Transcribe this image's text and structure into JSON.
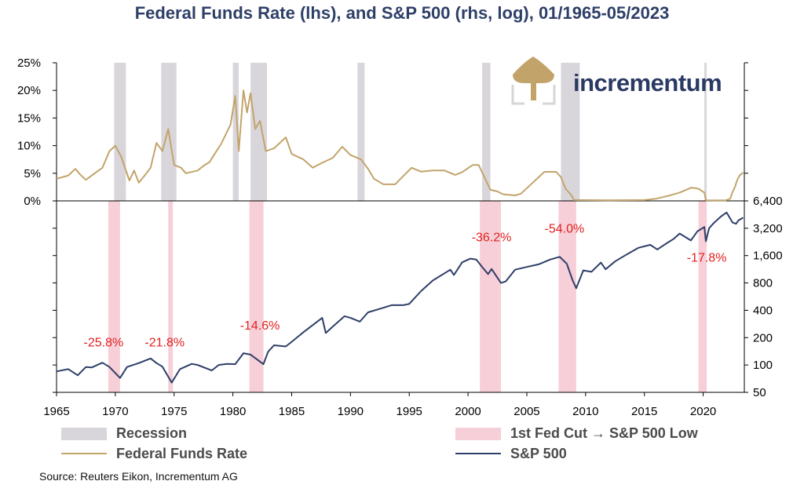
{
  "title": "Federal Funds Rate (lhs), and S&P 500 (rhs, log), 01/1965-05/2023",
  "source": "Source: Reuters Eikon, Incrementum AG",
  "logo": {
    "text": "incrementum",
    "icon": "tree-logo-icon",
    "color": "#c2a46b"
  },
  "colors": {
    "ffr": "#c2a46b",
    "spx": "#2e3f68",
    "recession": "#d9d6db",
    "fedcut": "#f7cfd8",
    "annotation": "#e0211f"
  },
  "legend": [
    {
      "label": "Recession",
      "kind": "bar",
      "color": "#d9d6db"
    },
    {
      "label": "1st Fed Cut → S&P 500 Low",
      "kind": "bar",
      "color": "#f7cfd8"
    },
    {
      "label": "Federal Funds Rate",
      "kind": "line",
      "color": "#c2a46b"
    },
    {
      "label": "S&P 500",
      "kind": "line",
      "color": "#2e3f68"
    }
  ],
  "chart_data": {
    "type": "line",
    "x_range": [
      1965,
      2023.5
    ],
    "x_ticks": [
      "1965",
      "1970",
      "1975",
      "1980",
      "1985",
      "1990",
      "1995",
      "2000",
      "2005",
      "2010",
      "2015",
      "2020"
    ],
    "ffr_axis": {
      "ticks": [
        "0%",
        "5%",
        "10%",
        "15%",
        "20%",
        "25%"
      ],
      "ylim": [
        0,
        25
      ]
    },
    "spx_axis": {
      "scale": "log",
      "ticks": [
        "50",
        "100",
        "200",
        "400",
        "800",
        "1,600",
        "3,200",
        "6,400"
      ],
      "ylim": [
        50,
        6400
      ]
    },
    "recessions": [
      [
        1969.9,
        1970.9
      ],
      [
        1973.9,
        1975.2
      ],
      [
        1980.0,
        1980.5
      ],
      [
        1981.5,
        1982.9
      ],
      [
        1990.6,
        1991.2
      ],
      [
        2001.2,
        2001.9
      ],
      [
        2007.9,
        2009.5
      ],
      [
        2020.1,
        2020.3
      ]
    ],
    "fed_cut_periods": [
      [
        1969.4,
        1970.4
      ],
      [
        1974.5,
        1974.9
      ],
      [
        1981.4,
        1982.6
      ],
      [
        2001.0,
        2002.8
      ],
      [
        2007.7,
        2009.2
      ],
      [
        2019.6,
        2020.3
      ]
    ],
    "annotations": [
      {
        "text": "-25.8%",
        "x": 1969.0,
        "y": 160
      },
      {
        "text": "-21.8%",
        "x": 1974.2,
        "y": 160
      },
      {
        "text": "-14.6%",
        "x": 1982.3,
        "y": 245
      },
      {
        "text": "-36.2%",
        "x": 2002.0,
        "y": 2300
      },
      {
        "text": "-54.0%",
        "x": 2008.2,
        "y": 2850
      },
      {
        "text": "-17.8%",
        "x": 2020.3,
        "y": 1370
      }
    ],
    "series": [
      {
        "name": "Federal Funds Rate",
        "points": [
          [
            1965.0,
            4.0
          ],
          [
            1966.0,
            4.6
          ],
          [
            1966.6,
            5.8
          ],
          [
            1967.0,
            4.8
          ],
          [
            1967.5,
            3.8
          ],
          [
            1968.0,
            4.6
          ],
          [
            1968.9,
            6.0
          ],
          [
            1969.5,
            9.0
          ],
          [
            1970.0,
            10.0
          ],
          [
            1970.5,
            8.0
          ],
          [
            1971.2,
            3.7
          ],
          [
            1971.6,
            5.5
          ],
          [
            1972.0,
            3.3
          ],
          [
            1972.5,
            4.6
          ],
          [
            1973.0,
            6.0
          ],
          [
            1973.5,
            10.5
          ],
          [
            1974.0,
            9.0
          ],
          [
            1974.5,
            13.0
          ],
          [
            1975.0,
            6.5
          ],
          [
            1975.6,
            6.0
          ],
          [
            1976.0,
            5.0
          ],
          [
            1977.0,
            5.5
          ],
          [
            1977.6,
            6.5
          ],
          [
            1978.0,
            7.0
          ],
          [
            1978.6,
            9.0
          ],
          [
            1979.0,
            10.3
          ],
          [
            1979.8,
            13.8
          ],
          [
            1980.2,
            19.0
          ],
          [
            1980.5,
            9.0
          ],
          [
            1980.9,
            20.0
          ],
          [
            1981.2,
            16.0
          ],
          [
            1981.5,
            19.5
          ],
          [
            1981.9,
            13.0
          ],
          [
            1982.3,
            14.5
          ],
          [
            1982.8,
            9.0
          ],
          [
            1983.5,
            9.5
          ],
          [
            1984.5,
            11.5
          ],
          [
            1985.0,
            8.5
          ],
          [
            1986.0,
            7.5
          ],
          [
            1986.8,
            6.0
          ],
          [
            1987.5,
            6.8
          ],
          [
            1988.5,
            7.8
          ],
          [
            1989.3,
            9.8
          ],
          [
            1990.0,
            8.3
          ],
          [
            1990.9,
            7.5
          ],
          [
            1991.5,
            5.8
          ],
          [
            1992.0,
            4.0
          ],
          [
            1992.8,
            3.0
          ],
          [
            1993.8,
            3.0
          ],
          [
            1994.5,
            4.5
          ],
          [
            1995.2,
            6.0
          ],
          [
            1996.0,
            5.3
          ],
          [
            1997.0,
            5.5
          ],
          [
            1998.0,
            5.5
          ],
          [
            1998.9,
            4.7
          ],
          [
            1999.5,
            5.2
          ],
          [
            2000.4,
            6.5
          ],
          [
            2000.9,
            6.5
          ],
          [
            2001.5,
            3.8
          ],
          [
            2001.9,
            2.0
          ],
          [
            2002.5,
            1.7
          ],
          [
            2003.0,
            1.2
          ],
          [
            2004.0,
            1.0
          ],
          [
            2004.5,
            1.3
          ],
          [
            2005.5,
            3.3
          ],
          [
            2006.5,
            5.25
          ],
          [
            2007.5,
            5.25
          ],
          [
            2007.9,
            4.3
          ],
          [
            2008.3,
            2.2
          ],
          [
            2008.8,
            1.0
          ],
          [
            2009.0,
            0.15
          ],
          [
            2012.0,
            0.1
          ],
          [
            2015.0,
            0.15
          ],
          [
            2016.0,
            0.4
          ],
          [
            2017.0,
            0.9
          ],
          [
            2018.0,
            1.5
          ],
          [
            2019.0,
            2.4
          ],
          [
            2019.6,
            2.2
          ],
          [
            2020.1,
            1.5
          ],
          [
            2020.25,
            0.1
          ],
          [
            2021.9,
            0.08
          ],
          [
            2022.3,
            0.4
          ],
          [
            2022.5,
            1.6
          ],
          [
            2022.7,
            2.5
          ],
          [
            2022.9,
            3.8
          ],
          [
            2023.1,
            4.6
          ],
          [
            2023.4,
            5.1
          ]
        ]
      },
      {
        "name": "S&P 500",
        "points": [
          [
            1965.0,
            85
          ],
          [
            1966.0,
            90
          ],
          [
            1966.8,
            77
          ],
          [
            1967.5,
            95
          ],
          [
            1968.0,
            94
          ],
          [
            1968.9,
            106
          ],
          [
            1969.5,
            95
          ],
          [
            1970.4,
            72
          ],
          [
            1971.0,
            95
          ],
          [
            1972.0,
            105
          ],
          [
            1973.0,
            118
          ],
          [
            1973.5,
            105
          ],
          [
            1974.0,
            96
          ],
          [
            1974.8,
            64
          ],
          [
            1975.5,
            90
          ],
          [
            1976.5,
            103
          ],
          [
            1977.0,
            100
          ],
          [
            1978.2,
            87
          ],
          [
            1978.8,
            100
          ],
          [
            1979.5,
            103
          ],
          [
            1980.2,
            102
          ],
          [
            1980.9,
            135
          ],
          [
            1981.5,
            130
          ],
          [
            1982.6,
            102
          ],
          [
            1983.0,
            140
          ],
          [
            1983.5,
            165
          ],
          [
            1984.5,
            160
          ],
          [
            1985.0,
            180
          ],
          [
            1986.0,
            230
          ],
          [
            1987.6,
            330
          ],
          [
            1987.9,
            225
          ],
          [
            1988.5,
            265
          ],
          [
            1989.5,
            345
          ],
          [
            1990.0,
            330
          ],
          [
            1990.8,
            300
          ],
          [
            1991.5,
            380
          ],
          [
            1992.5,
            415
          ],
          [
            1993.5,
            455
          ],
          [
            1994.5,
            455
          ],
          [
            1995.0,
            470
          ],
          [
            1996.0,
            650
          ],
          [
            1997.0,
            850
          ],
          [
            1998.5,
            1120
          ],
          [
            1998.8,
            980
          ],
          [
            1999.5,
            1350
          ],
          [
            2000.2,
            1480
          ],
          [
            2000.7,
            1450
          ],
          [
            2001.2,
            1200
          ],
          [
            2001.7,
            1000
          ],
          [
            2002.0,
            1140
          ],
          [
            2002.8,
            800
          ],
          [
            2003.2,
            830
          ],
          [
            2004.0,
            1120
          ],
          [
            2005.0,
            1200
          ],
          [
            2006.0,
            1280
          ],
          [
            2007.0,
            1450
          ],
          [
            2007.8,
            1550
          ],
          [
            2008.4,
            1300
          ],
          [
            2008.9,
            850
          ],
          [
            2009.2,
            700
          ],
          [
            2009.8,
            1100
          ],
          [
            2010.5,
            1060
          ],
          [
            2011.3,
            1340
          ],
          [
            2011.7,
            1130
          ],
          [
            2012.5,
            1380
          ],
          [
            2013.5,
            1650
          ],
          [
            2014.5,
            1950
          ],
          [
            2015.5,
            2100
          ],
          [
            2016.1,
            1870
          ],
          [
            2016.8,
            2150
          ],
          [
            2017.5,
            2450
          ],
          [
            2018.0,
            2800
          ],
          [
            2018.95,
            2350
          ],
          [
            2019.5,
            2950
          ],
          [
            2020.1,
            3300
          ],
          [
            2020.23,
            2300
          ],
          [
            2020.5,
            3200
          ],
          [
            2020.9,
            3650
          ],
          [
            2021.5,
            4300
          ],
          [
            2021.99,
            4770
          ],
          [
            2022.5,
            3700
          ],
          [
            2022.8,
            3580
          ],
          [
            2023.0,
            3900
          ],
          [
            2023.4,
            4180
          ]
        ]
      }
    ]
  }
}
